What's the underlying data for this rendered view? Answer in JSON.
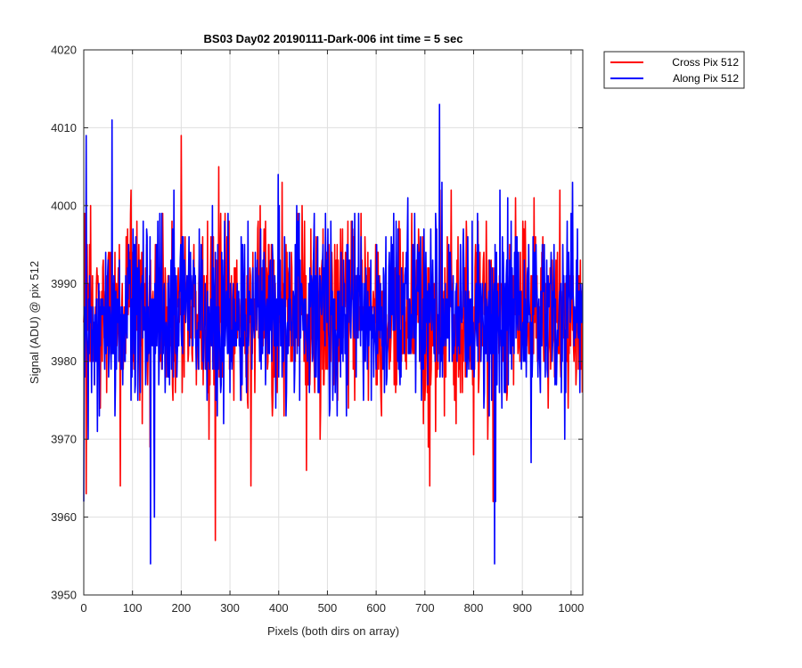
{
  "chart_data": {
    "type": "line",
    "title": "BS03 Day02 20190111-Dark-006 int time = 5 sec",
    "xlabel": "Pixels (both dirs on array)",
    "ylabel": "Signal (ADU) @ pix 512",
    "xlim": [
      0,
      1024
    ],
    "ylim": [
      3950,
      4020
    ],
    "xticks": [
      0,
      100,
      200,
      300,
      400,
      500,
      600,
      700,
      800,
      900,
      1000
    ],
    "yticks": [
      3950,
      3960,
      3970,
      3980,
      3990,
      4000,
      4010,
      4020
    ],
    "grid": true,
    "legend_position": "outside-top-right",
    "series": [
      {
        "name": "Cross Pix 512",
        "color": "#ff0000",
        "n_points": 1024,
        "mean": 3986,
        "std": 6,
        "min": 3957,
        "max": 4009,
        "notable_points": [
          [
            270,
            3957
          ],
          [
            200,
            4009
          ],
          [
            840,
            3962
          ],
          [
            710,
            3964
          ],
          [
            75,
            3964
          ]
        ]
      },
      {
        "name": "Along Pix 512",
        "color": "#0000ff",
        "n_points": 1024,
        "mean": 3986,
        "std": 6,
        "min": 3954,
        "max": 4013,
        "notable_points": [
          [
            0,
            3962
          ],
          [
            5,
            4009
          ],
          [
            58,
            4011
          ],
          [
            137,
            3954
          ],
          [
            145,
            3960
          ],
          [
            730,
            4013
          ],
          [
            843,
            3954
          ],
          [
            845,
            3962
          ]
        ]
      }
    ]
  }
}
